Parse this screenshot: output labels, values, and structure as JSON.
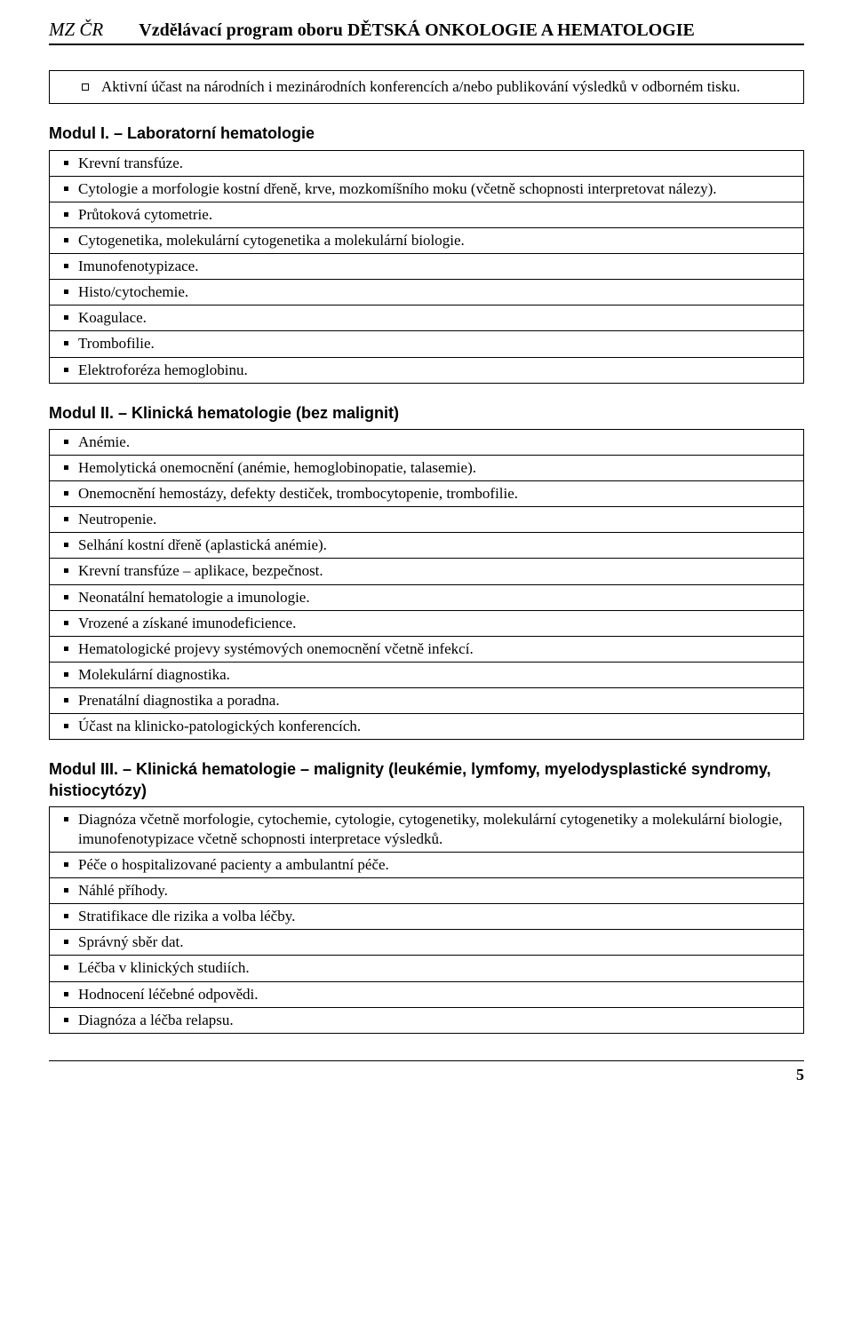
{
  "header": {
    "left": "MZ ČR",
    "right": "Vzdělávací program oboru DĚTSKÁ ONKOLOGIE A HEMATOLOGIE"
  },
  "topBox": {
    "items": [
      "Aktivní účast na národních i mezinárodních konferencích a/nebo publikování výsledků v odborném tisku."
    ]
  },
  "modul1": {
    "title": "Modul I. – Laboratorní hematologie",
    "items": [
      "Krevní transfúze.",
      "Cytologie a morfologie kostní dřeně, krve, mozkomíšního moku (včetně schopnosti interpretovat nálezy).",
      "Průtoková cytometrie.",
      "Cytogenetika, molekulární cytogenetika a molekulární biologie.",
      "Imunofenotypizace.",
      "Histo/cytochemie.",
      "Koagulace.",
      "Trombofilie.",
      "Elektroforéza hemoglobinu."
    ]
  },
  "modul2": {
    "title": "Modul II. – Klinická hematologie (bez malignit)",
    "items": [
      "Anémie.",
      "Hemolytická onemocnění (anémie, hemoglobinopatie, talasemie).",
      "Onemocnění hemostázy, defekty destiček, trombocytopenie, trombofilie.",
      "Neutropenie.",
      "Selhání kostní dřeně (aplastická anémie).",
      "Krevní transfúze – aplikace, bezpečnost.",
      "Neonatální hematologie a imunologie.",
      "Vrozené a získané imunodeficience.",
      "Hematologické projevy systémových onemocnění včetně infekcí.",
      "Molekulární diagnostika.",
      "Prenatální diagnostika a poradna.",
      "Účast na klinicko-patologických konferencích."
    ]
  },
  "modul3": {
    "title": "Modul III. – Klinická hematologie – malignity (leukémie, lymfomy, myelodysplastické syndromy, histiocytózy)",
    "items": [
      "Diagnóza včetně morfologie, cytochemie, cytologie, cytogenetiky, molekulární cytogenetiky a molekulární biologie, imunofenotypizace včetně schopnosti interpretace výsledků.",
      "Péče o hospitalizované pacienty a ambulantní péče.",
      "Náhlé příhody.",
      "Stratifikace dle rizika a volba léčby.",
      "Správný sběr dat.",
      "Léčba v klinických studiích.",
      "Hodnocení léčebné odpovědi.",
      "Diagnóza a léčba relapsu."
    ]
  },
  "pageNumber": "5"
}
